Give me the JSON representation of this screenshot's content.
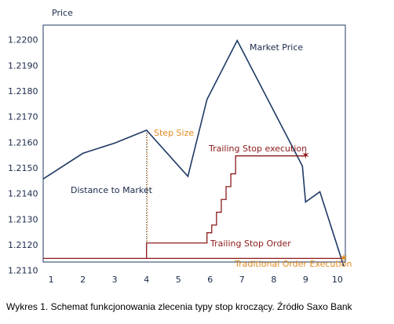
{
  "chart_data": {
    "type": "line",
    "y_label": "Price",
    "caption": "Wykres 1. Schemat funkcjonowania zlecenia typy stop kroczący. Źródło Saxo Bank",
    "annotations": [
      "Step Size",
      "Trailing Stop execution",
      "Distance to Market"
    ],
    "xlim": [
      0.75,
      10.25
    ],
    "xticks": [
      1,
      2,
      3,
      4,
      5,
      6,
      7,
      8,
      9,
      10
    ],
    "ylim": [
      1.2109,
      1.2206
    ],
    "yticks": [
      {
        "value": 1.211,
        "label": "1.2110"
      },
      {
        "value": 1.212,
        "label": "1.2120"
      },
      {
        "value": 1.213,
        "label": "1.2130"
      },
      {
        "value": 1.214,
        "label": "1.2140"
      },
      {
        "value": 1.215,
        "label": "1.2150"
      },
      {
        "value": 1.216,
        "label": "1.2160"
      },
      {
        "value": 1.217,
        "label": "1.2170"
      },
      {
        "value": 1.218,
        "label": "1.2180"
      },
      {
        "value": 1.219,
        "label": "1.2190"
      },
      {
        "value": 1.22,
        "label": "1.2200"
      }
    ],
    "series": [
      {
        "name": "Market Price",
        "color": "#1f3a66",
        "x": [
          0.75,
          2,
          3,
          4,
          5.3,
          5.9,
          6.85,
          8.9,
          9,
          9.45,
          10.2
        ],
        "values": [
          1.2146,
          1.2156,
          1.216,
          1.2165,
          1.2147,
          1.2177,
          1.22,
          1.2151,
          1.2137,
          1.2141,
          1.2112
        ]
      },
      {
        "name": "Trailing Stop Order",
        "color": "#8b1a1a",
        "x": [
          4,
          4,
          5.9,
          5.9,
          6.05,
          6.05,
          6.2,
          6.2,
          6.35,
          6.35,
          6.5,
          6.5,
          6.65,
          6.65,
          6.8,
          6.8,
          9
        ],
        "values": [
          1.2115,
          1.2121,
          1.2121,
          1.2125,
          1.2125,
          1.2128,
          1.2128,
          1.2133,
          1.2133,
          1.2138,
          1.2138,
          1.2143,
          1.2143,
          1.2148,
          1.2148,
          1.2155,
          1.2155
        ]
      },
      {
        "name": "Traditional Order Execution",
        "color": "#8b1a1a",
        "x": [
          0.75,
          10.2
        ],
        "values": [
          1.2115,
          1.2115
        ]
      }
    ]
  }
}
